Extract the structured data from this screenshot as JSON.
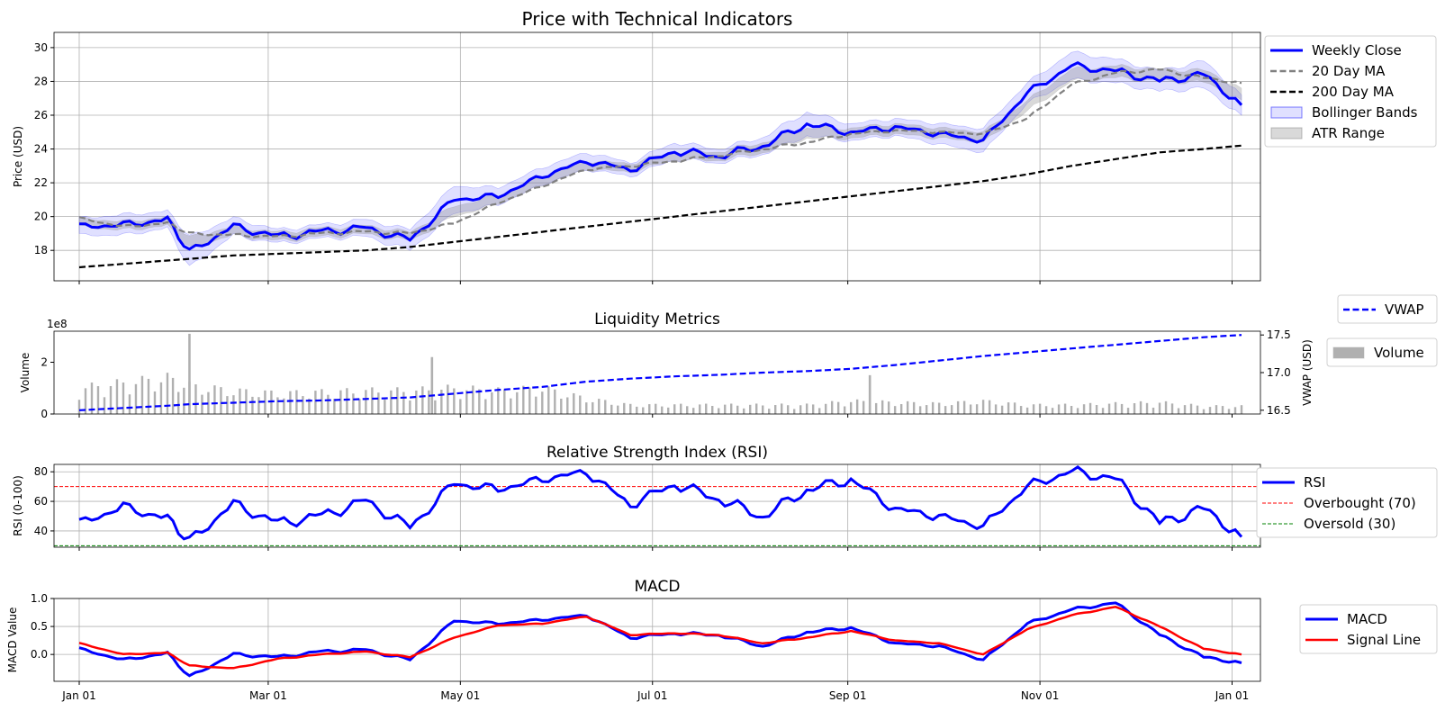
{
  "chart_data": [
    {
      "type": "line",
      "title": "Price with Technical Indicators",
      "ylabel": "Price (USD)",
      "xlim": [
        "2023-12-24",
        "2025-01-10"
      ],
      "ylim": [
        16.2,
        30.9
      ],
      "yticks": [
        18,
        20,
        22,
        24,
        26,
        28,
        30
      ],
      "grid": true,
      "legend": {
        "placement": "outside-right",
        "entries": [
          "Weekly Close",
          "20 Day MA",
          "200 Day MA",
          "Bollinger Bands",
          "ATR Range"
        ]
      },
      "x": [
        "2024-01-01",
        "2024-01-15",
        "2024-01-29",
        "2024-02-05",
        "2024-02-19",
        "2024-03-04",
        "2024-03-18",
        "2024-04-01",
        "2024-04-15",
        "2024-04-29",
        "2024-05-13",
        "2024-05-27",
        "2024-06-10",
        "2024-06-24",
        "2024-07-08",
        "2024-07-22",
        "2024-08-05",
        "2024-08-19",
        "2024-09-02",
        "2024-09-16",
        "2024-09-30",
        "2024-10-14",
        "2024-10-28",
        "2024-11-11",
        "2024-11-25",
        "2024-12-09",
        "2024-12-23",
        "2025-01-04"
      ],
      "series": [
        {
          "name": "Weekly Close",
          "color": "#0000ff",
          "values": [
            19.4,
            19.5,
            19.8,
            17.9,
            19.4,
            18.8,
            19.1,
            19.3,
            18.6,
            21.0,
            21.2,
            22.4,
            23.3,
            22.8,
            23.9,
            23.6,
            24.2,
            25.5,
            25.0,
            25.3,
            24.9,
            24.5,
            27.3,
            28.9,
            28.6,
            28.0,
            28.4,
            26.6
          ]
        },
        {
          "name": "20 Day MA",
          "color": "#808080",
          "style": "dashed",
          "values": [
            19.9,
            19.4,
            19.6,
            19.0,
            18.9,
            18.8,
            19.0,
            19.1,
            19.0,
            19.6,
            20.8,
            21.8,
            22.8,
            23.0,
            23.3,
            23.6,
            24.0,
            24.4,
            24.9,
            25.1,
            25.0,
            24.9,
            25.8,
            27.8,
            28.5,
            28.7,
            28.2,
            27.9
          ]
        },
        {
          "name": "200 Day MA",
          "color": "#000000",
          "style": "dashed",
          "values": [
            17.0,
            17.2,
            17.4,
            17.5,
            17.7,
            17.8,
            17.9,
            18.0,
            18.2,
            18.5,
            18.8,
            19.1,
            19.4,
            19.7,
            20.0,
            20.3,
            20.6,
            20.9,
            21.2,
            21.5,
            21.8,
            22.1,
            22.5,
            23.0,
            23.4,
            23.8,
            24.0,
            24.2
          ]
        }
      ],
      "bands": [
        {
          "name": "Bollinger Bands",
          "color": "#0000ff",
          "opacity": 0.12,
          "width": [
            0.5,
            0.6,
            0.5,
            0.9,
            0.5,
            0.4,
            0.4,
            0.5,
            0.6,
            0.8,
            0.5,
            0.5,
            0.5,
            0.4,
            0.5,
            0.4,
            0.5,
            0.7,
            0.5,
            0.5,
            0.6,
            0.7,
            0.6,
            0.8,
            0.7,
            0.6,
            0.8,
            0.6
          ]
        },
        {
          "name": "ATR Range",
          "color": "#808080",
          "opacity": 0.3,
          "width": [
            0.25,
            0.25,
            0.25,
            0.3,
            0.25,
            0.25,
            0.25,
            0.25,
            0.25,
            0.3,
            0.25,
            0.25,
            0.25,
            0.25,
            0.25,
            0.25,
            0.3,
            0.3,
            0.3,
            0.3,
            0.3,
            0.3,
            0.3,
            0.35,
            0.35,
            0.35,
            0.35,
            0.35
          ]
        }
      ]
    },
    {
      "type": "bar",
      "title": "Liquidity Metrics",
      "ylabel": "Volume",
      "y2label": "VWAP (USD)",
      "offset_text": "1e8",
      "ylim": [
        0,
        3.2
      ],
      "yticks": [
        0,
        2
      ],
      "y2lim": [
        16.45,
        17.55
      ],
      "y2ticks": [
        16.5,
        17.0,
        17.5
      ],
      "grid": false,
      "legend": {
        "placement": "outside-right",
        "entries": [
          "VWAP",
          "Volume"
        ]
      },
      "x": [
        "2024-01-01",
        "2024-01-15",
        "2024-01-29",
        "2024-02-05",
        "2024-02-19",
        "2024-03-04",
        "2024-03-18",
        "2024-04-01",
        "2024-04-15",
        "2024-04-29",
        "2024-05-13",
        "2024-05-27",
        "2024-06-10",
        "2024-06-24",
        "2024-07-08",
        "2024-07-22",
        "2024-08-05",
        "2024-08-19",
        "2024-09-02",
        "2024-09-16",
        "2024-09-30",
        "2024-10-14",
        "2024-10-28",
        "2024-11-11",
        "2024-11-25",
        "2024-12-09",
        "2024-12-23",
        "2025-01-04"
      ],
      "series": [
        {
          "name": "Volume",
          "color": "#b0b0b0",
          "values": [
            1.0,
            1.2,
            1.4,
            1.1,
            0.9,
            0.8,
            0.85,
            0.9,
            0.9,
            1.0,
            0.9,
            1.0,
            0.6,
            0.35,
            0.35,
            0.35,
            0.35,
            0.35,
            0.5,
            0.45,
            0.4,
            0.5,
            0.35,
            0.35,
            0.4,
            0.45,
            0.3,
            0.3
          ]
        },
        {
          "name": "VWAP",
          "color": "#0000ff",
          "style": "dashed",
          "values": [
            16.5,
            16.53,
            16.56,
            16.58,
            16.6,
            16.62,
            16.63,
            16.65,
            16.67,
            16.72,
            16.77,
            16.81,
            16.88,
            16.92,
            16.95,
            16.97,
            17.0,
            17.02,
            17.05,
            17.1,
            17.16,
            17.22,
            17.27,
            17.32,
            17.37,
            17.42,
            17.47,
            17.5
          ]
        }
      ],
      "spikes": [
        {
          "x": "2024-02-05",
          "value": 3.1
        },
        {
          "x": "2024-04-22",
          "value": 2.2
        },
        {
          "x": "2024-09-08",
          "value": 1.5
        }
      ]
    },
    {
      "type": "line",
      "title": "Relative Strength Index (RSI)",
      "ylabel": "RSI (0-100)",
      "ylim": [
        29,
        85
      ],
      "yticks": [
        40,
        60,
        80
      ],
      "grid": true,
      "legend": {
        "placement": "outside-right",
        "entries": [
          "RSI",
          "Overbought (70)",
          "Oversold (30)"
        ]
      },
      "hlines": [
        {
          "name": "Overbought (70)",
          "value": 70,
          "color": "#ff0000"
        },
        {
          "name": "Oversold (30)",
          "value": 30,
          "color": "#008000"
        }
      ],
      "x": [
        "2024-01-01",
        "2024-01-15",
        "2024-01-29",
        "2024-02-05",
        "2024-02-19",
        "2024-03-04",
        "2024-03-18",
        "2024-04-01",
        "2024-04-15",
        "2024-04-29",
        "2024-05-13",
        "2024-05-27",
        "2024-06-10",
        "2024-06-24",
        "2024-07-08",
        "2024-07-22",
        "2024-08-05",
        "2024-08-19",
        "2024-09-02",
        "2024-09-16",
        "2024-09-30",
        "2024-10-14",
        "2024-10-28",
        "2024-11-11",
        "2024-11-25",
        "2024-12-09",
        "2024-12-23",
        "2025-01-04"
      ],
      "series": [
        {
          "name": "RSI",
          "color": "#0000ff",
          "values": [
            45,
            56,
            48,
            33,
            58,
            45,
            50,
            60,
            42,
            72,
            68,
            75,
            80,
            58,
            72,
            62,
            50,
            68,
            75,
            55,
            50,
            43,
            70,
            80,
            75,
            45,
            55,
            36
          ]
        }
      ]
    },
    {
      "type": "line",
      "title": "MACD",
      "ylabel": "MACD Value",
      "ylim": [
        -0.48,
        1.0
      ],
      "yticks": [
        0.0,
        0.5,
        1.0
      ],
      "grid": true,
      "xticks": [
        "Jan 01",
        "Mar 01",
        "May 01",
        "Jul 01",
        "Sep 01",
        "Nov 01",
        "Jan 01"
      ],
      "xtick_dates": [
        "2024-01-01",
        "2024-03-01",
        "2024-05-01",
        "2024-07-01",
        "2024-09-01",
        "2024-11-01",
        "2025-01-01"
      ],
      "legend": {
        "placement": "outside-right",
        "entries": [
          "MACD",
          "Signal Line"
        ]
      },
      "x": [
        "2024-01-01",
        "2024-01-15",
        "2024-01-29",
        "2024-02-05",
        "2024-02-19",
        "2024-03-04",
        "2024-03-18",
        "2024-04-01",
        "2024-04-15",
        "2024-04-29",
        "2024-05-13",
        "2024-05-27",
        "2024-06-10",
        "2024-06-24",
        "2024-07-08",
        "2024-07-22",
        "2024-08-05",
        "2024-08-19",
        "2024-09-02",
        "2024-09-16",
        "2024-09-30",
        "2024-10-14",
        "2024-10-28",
        "2024-11-11",
        "2024-11-25",
        "2024-12-09",
        "2024-12-23",
        "2025-01-04"
      ],
      "series": [
        {
          "name": "MACD",
          "color": "#0000ff",
          "values": [
            0.1,
            -0.1,
            0.02,
            -0.4,
            0.0,
            -0.05,
            0.05,
            0.08,
            -0.1,
            0.6,
            0.55,
            0.62,
            0.7,
            0.3,
            0.38,
            0.35,
            0.15,
            0.4,
            0.48,
            0.2,
            0.15,
            -0.1,
            0.55,
            0.8,
            0.92,
            0.35,
            -0.05,
            -0.15
          ]
        },
        {
          "name": "Signal Line",
          "color": "#ff0000",
          "values": [
            0.2,
            0.0,
            0.03,
            -0.2,
            -0.25,
            -0.08,
            0.0,
            0.05,
            -0.05,
            0.3,
            0.52,
            0.55,
            0.68,
            0.35,
            0.38,
            0.35,
            0.2,
            0.3,
            0.42,
            0.25,
            0.2,
            0.0,
            0.45,
            0.7,
            0.85,
            0.5,
            0.1,
            0.0
          ]
        }
      ]
    }
  ]
}
